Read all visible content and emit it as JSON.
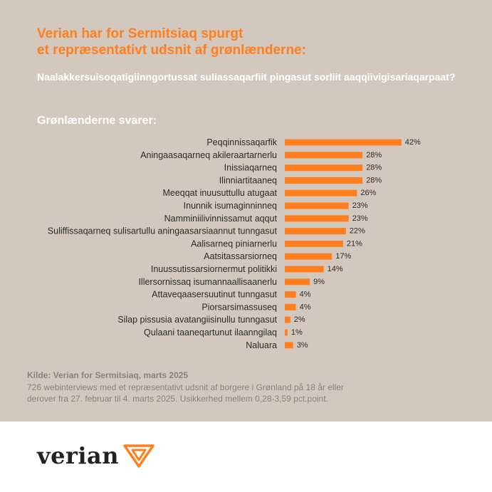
{
  "header": {
    "title_line1": "Verian har for Sermitsiaq spurgt",
    "title_line2": "et repræsentativt udsnit af grønlænderne:",
    "question": "Naalakkersuisoqatigiinngortussat suliassaqarfiit pingasut sorliit aaqqiivigisariaqarpaat?",
    "subhead": "Grønlænderne svarer:"
  },
  "colors": {
    "panel": "#d2c8bd",
    "accent": "#ff7f1e",
    "bar": "#ff7f1e",
    "label_text": "#2b2b2b",
    "source_text": "#8c8279"
  },
  "chart_data": {
    "type": "bar",
    "orientation": "horizontal",
    "categories": [
      "Peqqinnissaqarfik",
      "Aningaasaqarneq akileraartarnerlu",
      "Inissiaqarneq",
      "Ilinniartitaaneq",
      "Meeqqat inuusuttullu atugaat",
      "Inunnik isumaginninneq",
      "Namminiilivinnissamut aqqut",
      "Suliffissaqarneq sulisartullu aningaasarsiaannut tunngasut",
      "Aalisarneq piniarnerlu",
      "Aatsitassarsiorneq",
      "Inuussutissarsiornermut politikki",
      "Illersornissaq isumannaallisaanerlu",
      "Attaveqaasersuutinut tunngasut",
      "Piorsarsimassuseq",
      "Silap pissusia avatangiisinullu tunngasut",
      "Qulaani taaneqartunut ilaanngilaq",
      "Naluara"
    ],
    "values": [
      42,
      28,
      28,
      28,
      26,
      23,
      23,
      22,
      21,
      17,
      14,
      9,
      4,
      4,
      2,
      1,
      3
    ],
    "value_labels": [
      "42%",
      "28%",
      "28%",
      "28%",
      "26%",
      "23%",
      "23%",
      "22%",
      "21%",
      "17%",
      "14%",
      "9%",
      "4%",
      "4%",
      "2%",
      "1%",
      "3%"
    ],
    "xlim": [
      0,
      50
    ],
    "grid": false,
    "legend": "none"
  },
  "source": {
    "title": "Kilde: Verian for Sermitsiaq, marts 2025",
    "line1": "726 webinterviews med et repræsentativt udsnit af borgere i Grønland på 18 år eller",
    "line2": "derover fra 27. februar til 4. marts 2025. Usikkerhed mellem 0,28-3,59 pct.point."
  },
  "logo": {
    "text": "verian",
    "icon": "verian-logo-mark-icon"
  }
}
